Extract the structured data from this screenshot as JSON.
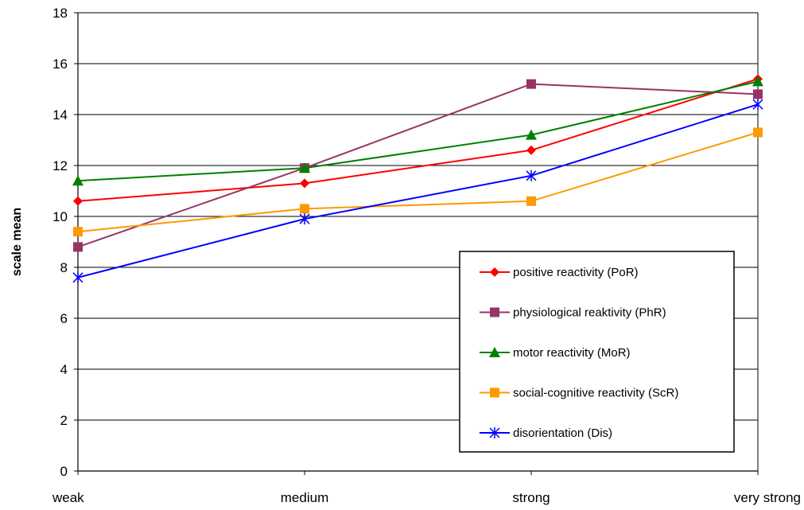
{
  "chart_data": {
    "type": "line",
    "title": "",
    "xlabel": "",
    "ylabel": "scale mean",
    "categories": [
      "weak",
      "medium",
      "strong",
      "very strong"
    ],
    "ylim": [
      0,
      18
    ],
    "yticks": [
      0,
      2,
      4,
      6,
      8,
      10,
      12,
      14,
      16,
      18
    ],
    "grid": "horizontal",
    "legend_position": "lower-right",
    "series": [
      {
        "name": "positive reactivity (PoR)",
        "color": "#ff0000",
        "marker": "diamond",
        "values": [
          10.6,
          11.3,
          12.6,
          15.4
        ]
      },
      {
        "name": "physiological reaktivity (PhR)",
        "color": "#993366",
        "marker": "square",
        "values": [
          8.8,
          11.9,
          15.2,
          14.8
        ]
      },
      {
        "name": "motor reactivity (MoR)",
        "color": "#008000",
        "marker": "triangle",
        "values": [
          11.4,
          11.9,
          13.2,
          15.3
        ]
      },
      {
        "name": "social-cognitive reactivity (ScR)",
        "color": "#ff9900",
        "marker": "square",
        "values": [
          9.4,
          10.3,
          10.6,
          13.3
        ]
      },
      {
        "name": "disorientation  (Dis)",
        "color": "#0000ff",
        "marker": "asterisk",
        "values": [
          7.6,
          9.9,
          11.6,
          14.4
        ]
      }
    ]
  }
}
